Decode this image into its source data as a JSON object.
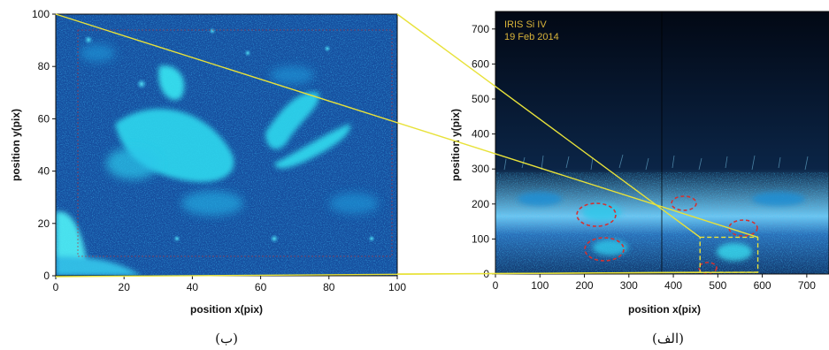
{
  "figure": {
    "caption_left": "(ب)",
    "caption_right": "(الف)"
  },
  "panel_b": {
    "xlabel": "position x(pix)",
    "ylabel": "position y(pix)",
    "xticks": [
      "0",
      "20",
      "40",
      "60",
      "80",
      "100"
    ],
    "yticks": [
      "0",
      "20",
      "40",
      "60",
      "80",
      "100"
    ],
    "xlim": [
      0,
      100
    ],
    "ylim": [
      0,
      100
    ]
  },
  "panel_a": {
    "annotation_line1": "IRIS Si IV",
    "annotation_line2": "19 Feb 2014",
    "xlabel": "position x(pix)",
    "ylabel": "position y(pix)",
    "xticks": [
      "0",
      "100",
      "200",
      "300",
      "400",
      "500",
      "600",
      "700"
    ],
    "yticks": [
      "0",
      "100",
      "200",
      "300",
      "400",
      "500",
      "600",
      "700"
    ],
    "xlim": [
      0,
      750
    ],
    "ylim": [
      0,
      750
    ],
    "zoom_box_x": [
      460,
      590
    ],
    "zoom_box_y": [
      5,
      105
    ]
  },
  "chart_data": [
    {
      "type": "heatmap",
      "title": "",
      "xlabel": "position x(pix)",
      "ylabel": "position y(pix)",
      "xlim": [
        0,
        100
      ],
      "ylim": [
        0,
        100
      ],
      "description_colormap": "blue-cyan"
    },
    {
      "type": "heatmap",
      "title": "",
      "annotation": [
        "IRIS Si IV",
        "19 Feb 2014"
      ],
      "xlabel": "position x(pix)",
      "ylabel": "position y(pix)",
      "xlim": [
        0,
        750
      ],
      "ylim": [
        0,
        750
      ],
      "description_colormap": "blue-cyan"
    }
  ],
  "colors": {
    "zoom_lines": "#e8e23a",
    "circle_markers": "#d23232",
    "background_dark": "#020814",
    "plasma_blue": "#1f5fb3",
    "plasma_cyan": "#2fe3ee"
  }
}
